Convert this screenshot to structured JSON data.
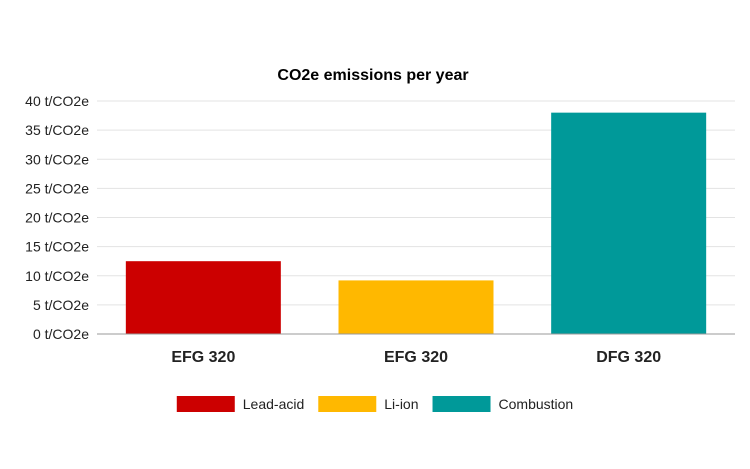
{
  "chart_data": {
    "type": "bar",
    "title": "CO2e emissions per year",
    "xlabel": "",
    "ylabel": "",
    "ylim": [
      0,
      40
    ],
    "yticks": [
      {
        "value": 0,
        "label": "0 t/CO2e"
      },
      {
        "value": 5,
        "label": "5 t/CO2e"
      },
      {
        "value": 10,
        "label": "10 t/CO2e"
      },
      {
        "value": 15,
        "label": "15 t/CO2e"
      },
      {
        "value": 20,
        "label": "20 t/CO2e"
      },
      {
        "value": 25,
        "label": "25 t/CO2e"
      },
      {
        "value": 30,
        "label": "30 t/CO2e"
      },
      {
        "value": 35,
        "label": "35 t/CO2e"
      },
      {
        "value": 40,
        "label": "40 t/CO2e"
      }
    ],
    "grid": true,
    "legend_position": "bottom",
    "categories": [
      "EFG 320",
      "EFG 320",
      "DFG 320"
    ],
    "series": [
      {
        "name": "Lead-acid",
        "color": "#cc0000",
        "values": [
          12.5,
          null,
          null
        ]
      },
      {
        "name": "Li-ion",
        "color": "#ffb800",
        "values": [
          null,
          9.2,
          null
        ]
      },
      {
        "name": "Combustion",
        "color": "#009999",
        "values": [
          null,
          null,
          38.0
        ]
      }
    ]
  },
  "colors": {
    "grid": "#e3e3e3",
    "axis": "#999999",
    "text": "#222222"
  }
}
